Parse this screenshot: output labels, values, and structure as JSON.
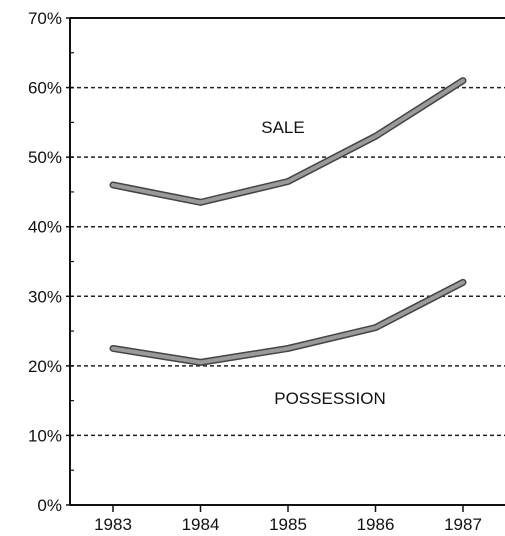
{
  "chart_data": {
    "type": "line",
    "title": "",
    "xlabel": "",
    "ylabel": "",
    "x": [
      "1983",
      "1984",
      "1985",
      "1986",
      "1987"
    ],
    "y_ticks": [
      "0%",
      "10%",
      "20%",
      "30%",
      "40%",
      "50%",
      "60%",
      "70%"
    ],
    "ylim": [
      0,
      70
    ],
    "grid": "horizontal dashed lines at every 10%",
    "legend": "none (labels placed on chart)",
    "series": [
      {
        "name": "SALE",
        "values": [
          46,
          43.5,
          46.5,
          53,
          61
        ]
      },
      {
        "name": "POSSESSION",
        "values": [
          22.5,
          20.5,
          22.5,
          25.5,
          32
        ]
      }
    ],
    "colors": {
      "line": "#9a9a9a",
      "line_outline": "#444444",
      "grid": "#222222",
      "axis": "#111111"
    }
  }
}
